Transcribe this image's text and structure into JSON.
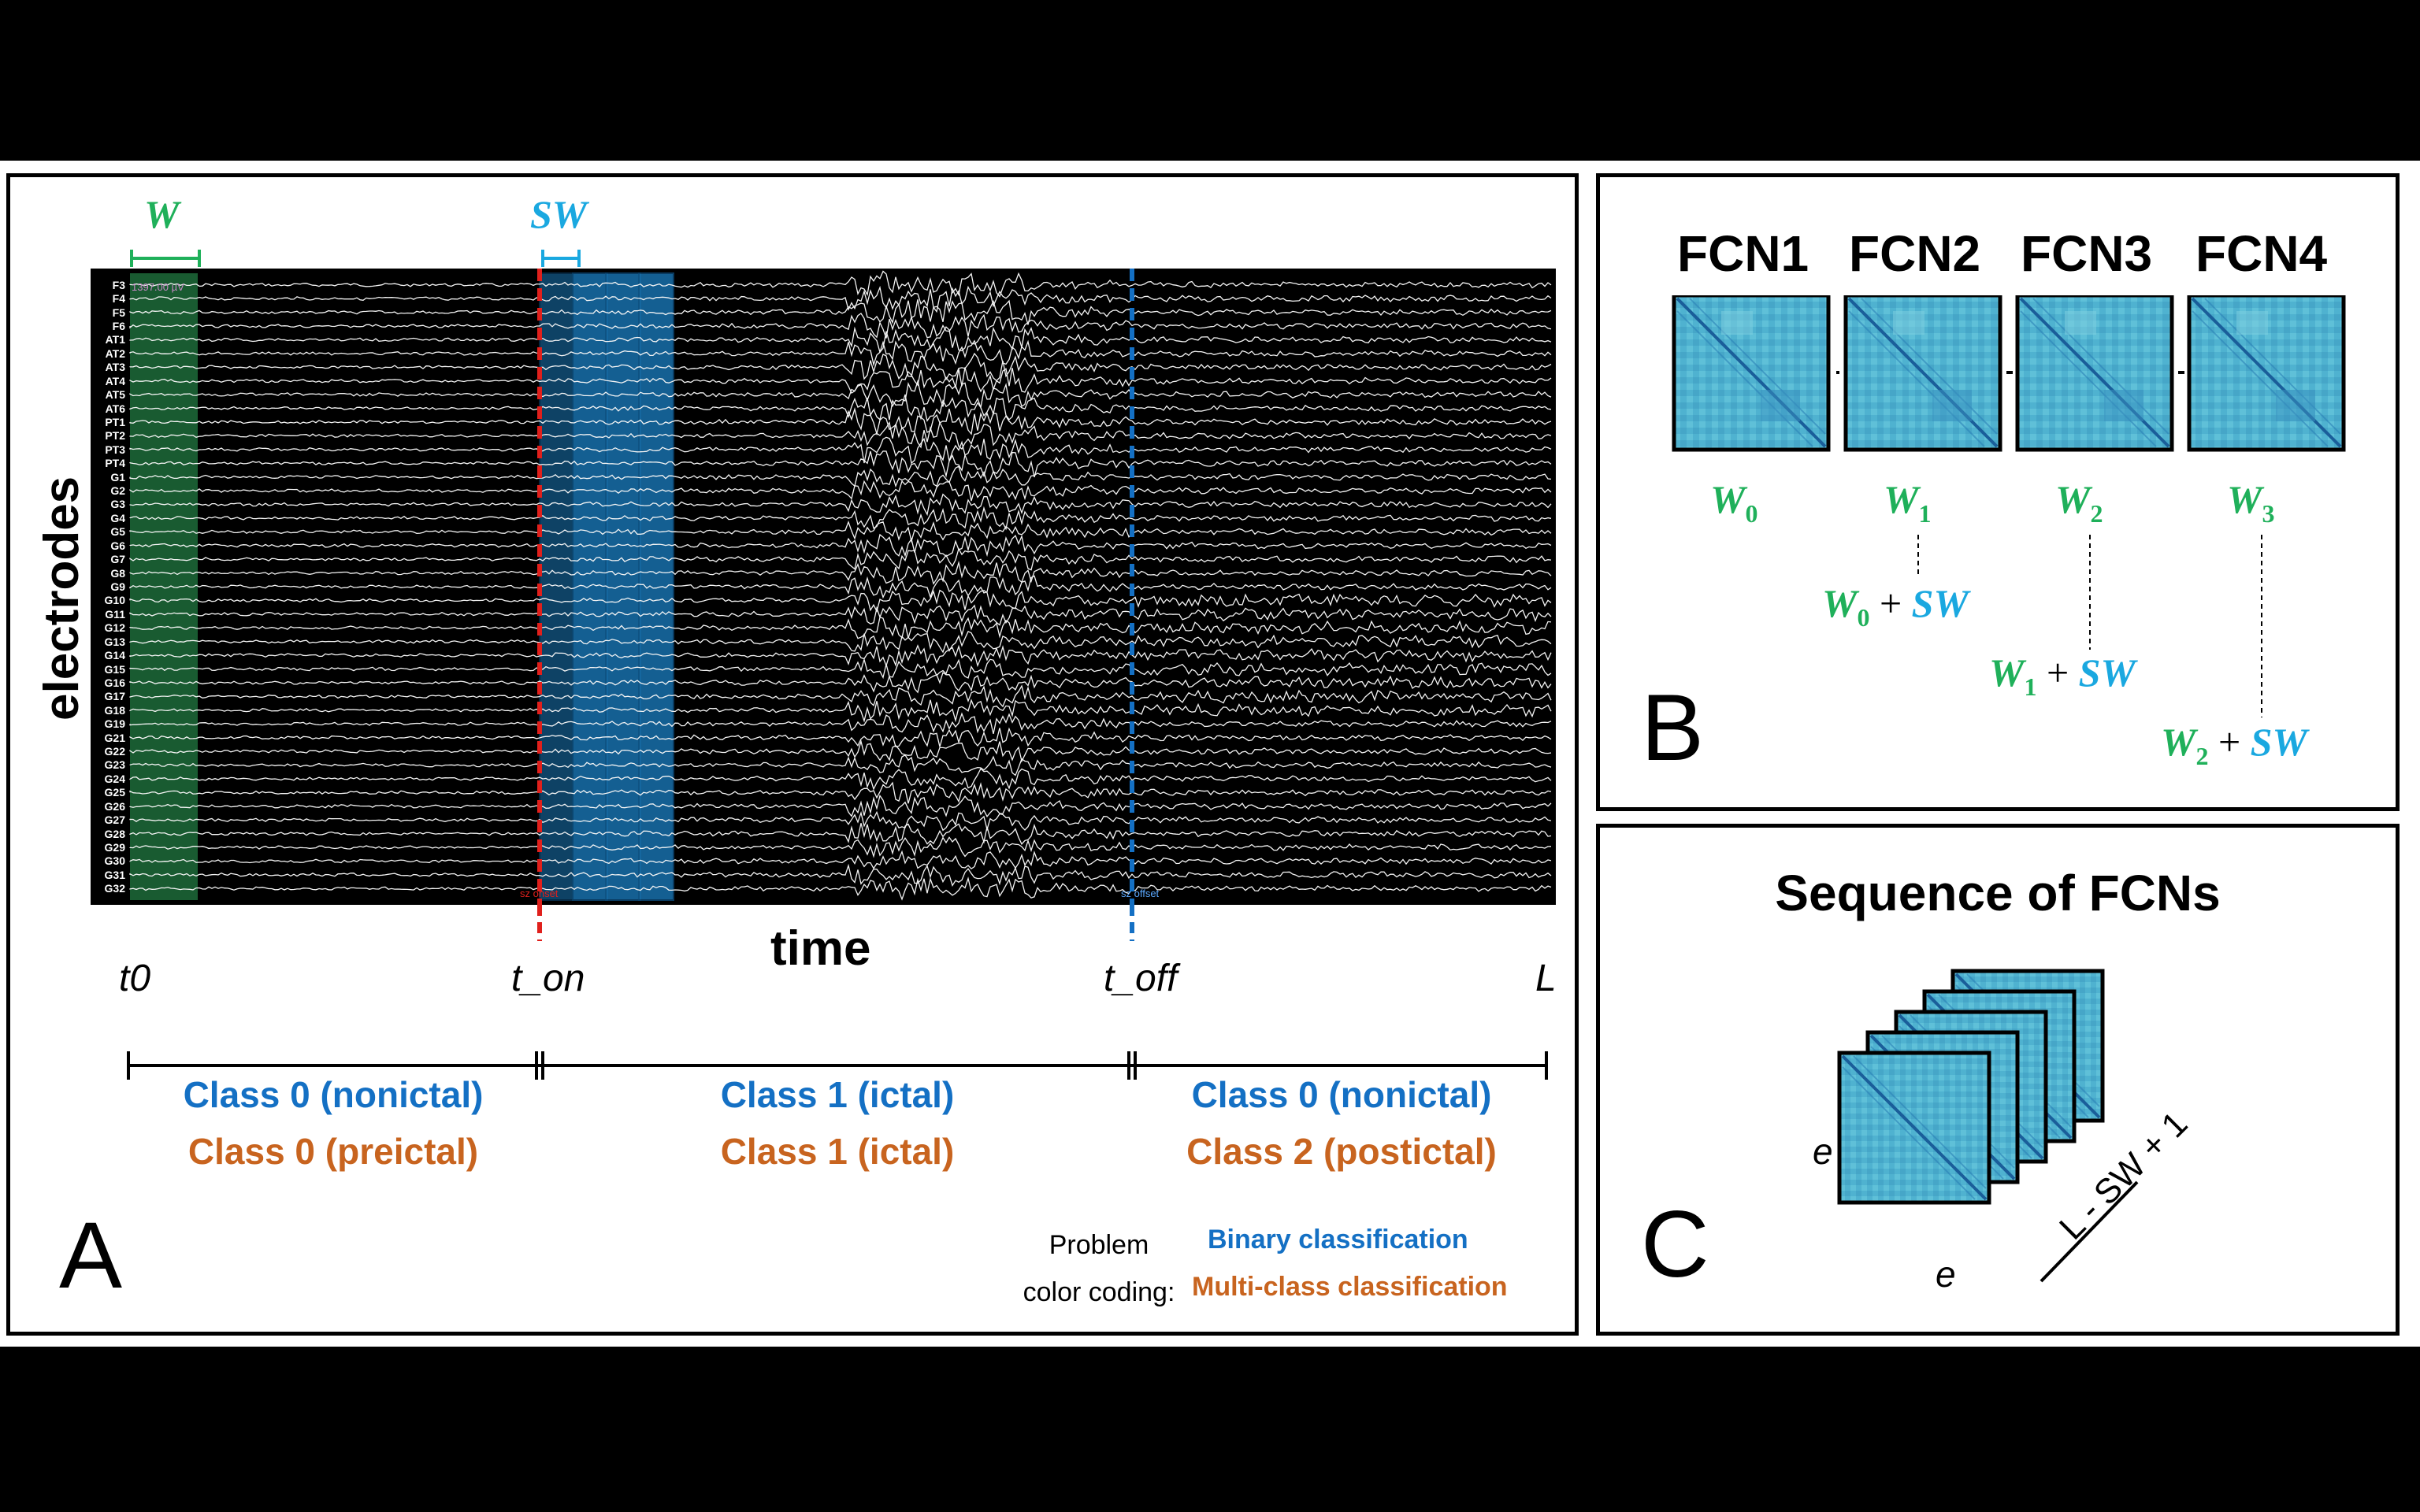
{
  "panels": {
    "a": {
      "letter": "A",
      "window_label": "W",
      "shift_label": "SW",
      "y_axis_label": "electrodes",
      "x_axis_label": "time",
      "scale_text": "1397.00 µV",
      "onset_marker": "sz onset",
      "offset_marker": "sz offset",
      "channels": [
        "F3",
        "F4",
        "F5",
        "F6",
        "AT1",
        "AT2",
        "AT3",
        "AT4",
        "AT5",
        "AT6",
        "PT1",
        "PT2",
        "PT3",
        "PT4",
        "G1",
        "G2",
        "G3",
        "G4",
        "G5",
        "G6",
        "G7",
        "G8",
        "G9",
        "G10",
        "G11",
        "G12",
        "G13",
        "G14",
        "G15",
        "G16",
        "G17",
        "G18",
        "G19",
        "G21",
        "G22",
        "G23",
        "G24",
        "G25",
        "G26",
        "G27",
        "G28",
        "G29",
        "G30",
        "G31",
        "G32"
      ],
      "time_marks": {
        "start": "t0",
        "onset": "t_on",
        "offset": "t_off",
        "end": "L"
      },
      "classes": [
        {
          "binary": "Class 0 (nonictal)",
          "multi": "Class 0 (preictal)"
        },
        {
          "binary": "Class 1 (ictal)",
          "multi": "Class 1 (ictal)"
        },
        {
          "binary": "Class 0 (nonictal)",
          "multi": "Class 2 (postictal)"
        }
      ],
      "legend": {
        "label_line1": "Problem",
        "label_line2": "color coding:",
        "binary": "Binary classification",
        "multi": "Multi-class classification"
      }
    },
    "b": {
      "letter": "B",
      "fcns": [
        "FCN1",
        "FCN2",
        "FCN3",
        "FCN4"
      ],
      "windows": [
        {
          "w": "W",
          "sub": "0"
        },
        {
          "w": "W",
          "sub": "1"
        },
        {
          "w": "W",
          "sub": "2"
        },
        {
          "w": "W",
          "sub": "3"
        }
      ],
      "shift_terms": [
        {
          "w": "W",
          "sub": "0",
          "plus": "+",
          "sw": "SW"
        },
        {
          "w": "W",
          "sub": "1",
          "plus": "+",
          "sw": "SW"
        },
        {
          "w": "W",
          "sub": "2",
          "plus": "+",
          "sw": "SW"
        }
      ]
    },
    "c": {
      "letter": "C",
      "title": "Sequence of FCNs",
      "dim_left": "e",
      "dim_bottom": "e",
      "depth_label": "L - SW + 1"
    }
  },
  "colors": {
    "binary": "#1470c4",
    "multi": "#c8641f",
    "window": "#1fb05a",
    "shift": "#1aa8e0",
    "onset_line": "#e0201c",
    "offset_line": "#1470c4",
    "matrix": "#4fb2d0"
  }
}
